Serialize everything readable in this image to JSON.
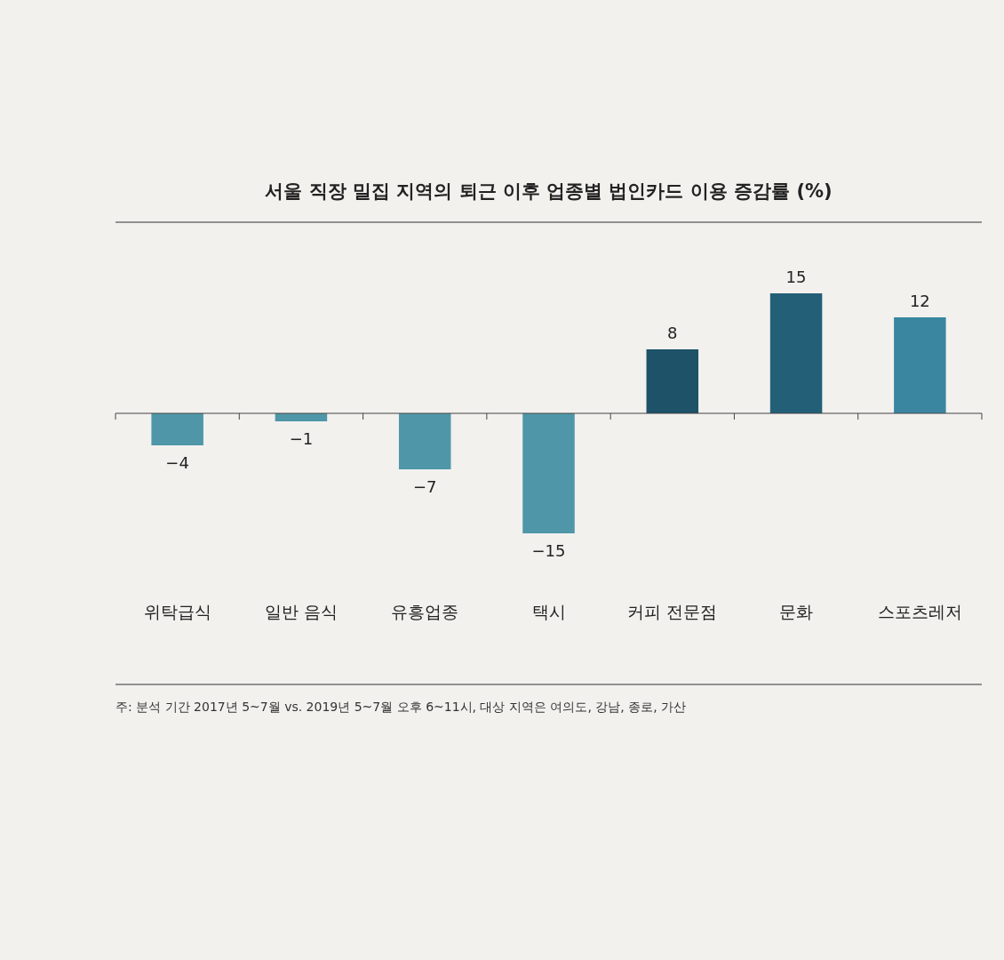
{
  "chart_data": {
    "type": "bar",
    "title": "서울 직장 밀집 지역의 퇴근 이후 업종별 법인카드 이용 증감률 (%)",
    "categories": [
      "위탁급식",
      "일반 음식",
      "유흥업종",
      "택시",
      "커피 전문점",
      "문화",
      "스포츠레저"
    ],
    "values": [
      -4,
      -1,
      -7,
      -15,
      8,
      15,
      12
    ],
    "colors": [
      "#4f97a8",
      "#4f97a8",
      "#4f97a8",
      "#4f97a8",
      "#1d5268",
      "#245f78",
      "#3a86a0"
    ],
    "data_labels": true,
    "annotations": [
      "주: 분석 기간 2017년 5~7월 vs. 2019년 5~7월 오후 6~11시, 대상 지역은 여의도, 강남, 종로, 가산"
    ]
  }
}
